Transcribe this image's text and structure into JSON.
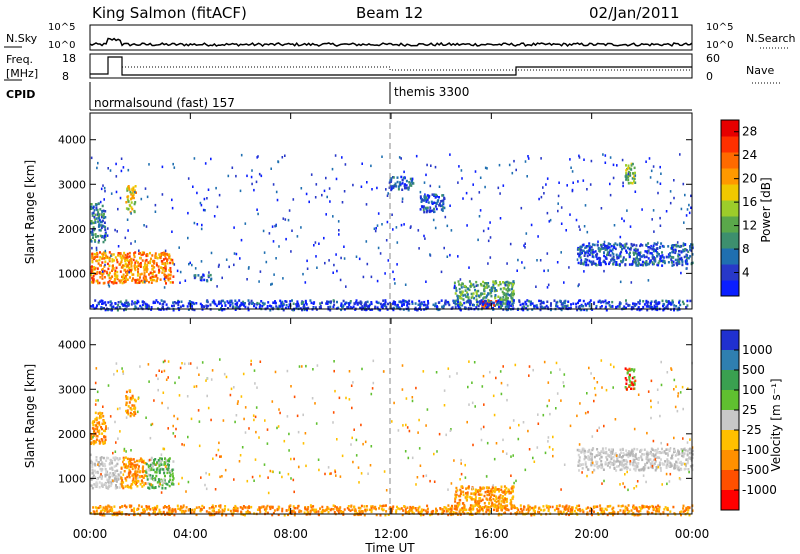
{
  "header": {
    "station": "King Salmon (fitACF)",
    "beam": "Beam 12",
    "date": "02/Jan/2011"
  },
  "summary": {
    "nsky_label": "N.Sky",
    "nsky_ticks": [
      "10^5",
      "10^0"
    ],
    "nsearch_label": "N.Search",
    "nsearch_ticks": [
      "10^5",
      "10^0"
    ],
    "freq_label": "Freq.",
    "freq_unit": "[MHz]",
    "freq_ticks": [
      "18",
      "8"
    ],
    "nave_label": "Nave",
    "nave_ticks": [
      "60",
      "0"
    ],
    "cpid_label": "CPID",
    "cpid_segments": [
      "normalsound (fast) 157",
      "themis 3300"
    ]
  },
  "chart_data": [
    {
      "type": "heatmap",
      "name": "power",
      "ylabel": "Slant Range [km]",
      "yticks": [
        "1000",
        "2000",
        "3000",
        "4000"
      ],
      "ylim": [
        200,
        4600
      ],
      "xlim": [
        0,
        24
      ],
      "colorbar": {
        "label": "Power [dB]",
        "ticks": [
          "4",
          "8",
          "12",
          "16",
          "20",
          "24",
          "28"
        ],
        "range": [
          0,
          30
        ],
        "colors": [
          "#0a1eff",
          "#2838c8",
          "#1f6fb0",
          "#3d8f6e",
          "#5aa84a",
          "#9ccd2a",
          "#f0c800",
          "#ff9900",
          "#ff6a00",
          "#ff3000",
          "#e60000"
        ]
      },
      "regions": [
        {
          "t": [
            0.0,
            3.3
          ],
          "r": [
            800,
            1500
          ],
          "level": 0.72
        },
        {
          "t": [
            0.0,
            0.6
          ],
          "r": [
            1700,
            2600
          ],
          "level": 0.25
        },
        {
          "t": [
            1.4,
            1.8
          ],
          "r": [
            2400,
            3000
          ],
          "level": 0.58
        },
        {
          "t": [
            4.1,
            4.8
          ],
          "r": [
            850,
            1000
          ],
          "level": 0.2
        },
        {
          "t": [
            14.5,
            16.9
          ],
          "r": [
            300,
            850
          ],
          "level": 0.35
        },
        {
          "t": [
            15.6,
            16.2
          ],
          "r": [
            250,
            400
          ],
          "level": 0.85
        },
        {
          "t": [
            13.1,
            14.1
          ],
          "r": [
            2400,
            2800
          ],
          "level": 0.15
        },
        {
          "t": [
            19.4,
            24.0
          ],
          "r": [
            1200,
            1700
          ],
          "level": 0.18
        },
        {
          "t": [
            21.3,
            21.7
          ],
          "r": [
            3000,
            3500
          ],
          "level": 0.45
        },
        {
          "t": [
            11.9,
            12.9
          ],
          "r": [
            2900,
            3200
          ],
          "level": 0.15
        },
        {
          "t": [
            0.0,
            24.0
          ],
          "r": [
            200,
            420
          ],
          "level": 0.12
        }
      ]
    },
    {
      "type": "heatmap",
      "name": "velocity",
      "ylabel": "Slant Range [km]",
      "yticks": [
        "1000",
        "2000",
        "3000",
        "4000"
      ],
      "ylim": [
        200,
        4600
      ],
      "xlim": [
        0,
        24
      ],
      "xticks": [
        "00:00",
        "04:00",
        "08:00",
        "12:00",
        "16:00",
        "20:00",
        "00:00"
      ],
      "xlabel": "Time UT",
      "colorbar": {
        "label": "Velocity [m s⁻¹]",
        "ticks": [
          "1000",
          "500",
          "100",
          "25",
          "-25",
          "-100",
          "-500",
          "-1000"
        ],
        "colors": [
          "#2030d0",
          "#2f7fb0",
          "#3aa050",
          "#60c030",
          "#c8c8c8",
          "#ffc000",
          "#ff9000",
          "#ff5000",
          "#ff0000"
        ]
      },
      "regions": [
        {
          "t": [
            0.0,
            1.2
          ],
          "r": [
            800,
            1500
          ],
          "level": "gray"
        },
        {
          "t": [
            1.2,
            2.2
          ],
          "r": [
            800,
            1500
          ],
          "level": "orange"
        },
        {
          "t": [
            2.2,
            3.3
          ],
          "r": [
            800,
            1500
          ],
          "level": "green"
        },
        {
          "t": [
            1.4,
            1.8
          ],
          "r": [
            2400,
            3000
          ],
          "level": "orange"
        },
        {
          "t": [
            0.0,
            0.6
          ],
          "r": [
            1800,
            2500
          ],
          "level": "orange"
        },
        {
          "t": [
            14.5,
            16.9
          ],
          "r": [
            300,
            850
          ],
          "level": "orange"
        },
        {
          "t": [
            19.4,
            24.0
          ],
          "r": [
            1200,
            1700
          ],
          "level": "gray"
        },
        {
          "t": [
            21.3,
            21.7
          ],
          "r": [
            3000,
            3500
          ],
          "level": "red"
        },
        {
          "t": [
            0.0,
            24.0
          ],
          "r": [
            200,
            420
          ],
          "level": "orange"
        }
      ]
    }
  ]
}
